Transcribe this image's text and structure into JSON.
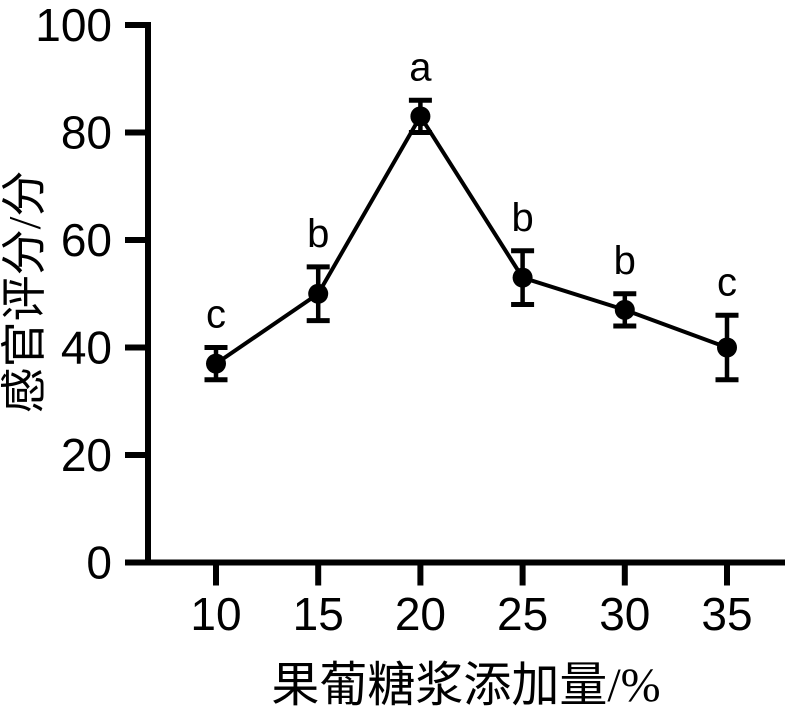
{
  "figure": {
    "background": "#ffffff",
    "ink_color": "#000000"
  },
  "chart_data": {
    "type": "line",
    "title": "",
    "xlabel": "果葡糖浆添加量/%",
    "ylabel": "感官评分/分",
    "x": [
      10,
      15,
      20,
      25,
      30,
      35
    ],
    "x_tick_labels": [
      "10",
      "15",
      "20",
      "25",
      "30",
      "35"
    ],
    "y_ticks": [
      0,
      20,
      40,
      60,
      80,
      100
    ],
    "ylim": [
      0,
      100
    ],
    "grid": false,
    "legend": "none",
    "marker": "filled-circle",
    "error_bars": true,
    "series": [
      {
        "values": [
          37,
          50,
          83,
          53,
          47,
          40
        ],
        "errors": [
          3,
          5,
          3,
          5,
          3,
          6
        ],
        "point_labels": [
          "c",
          "b",
          "a",
          "b",
          "b",
          "c"
        ]
      }
    ]
  }
}
